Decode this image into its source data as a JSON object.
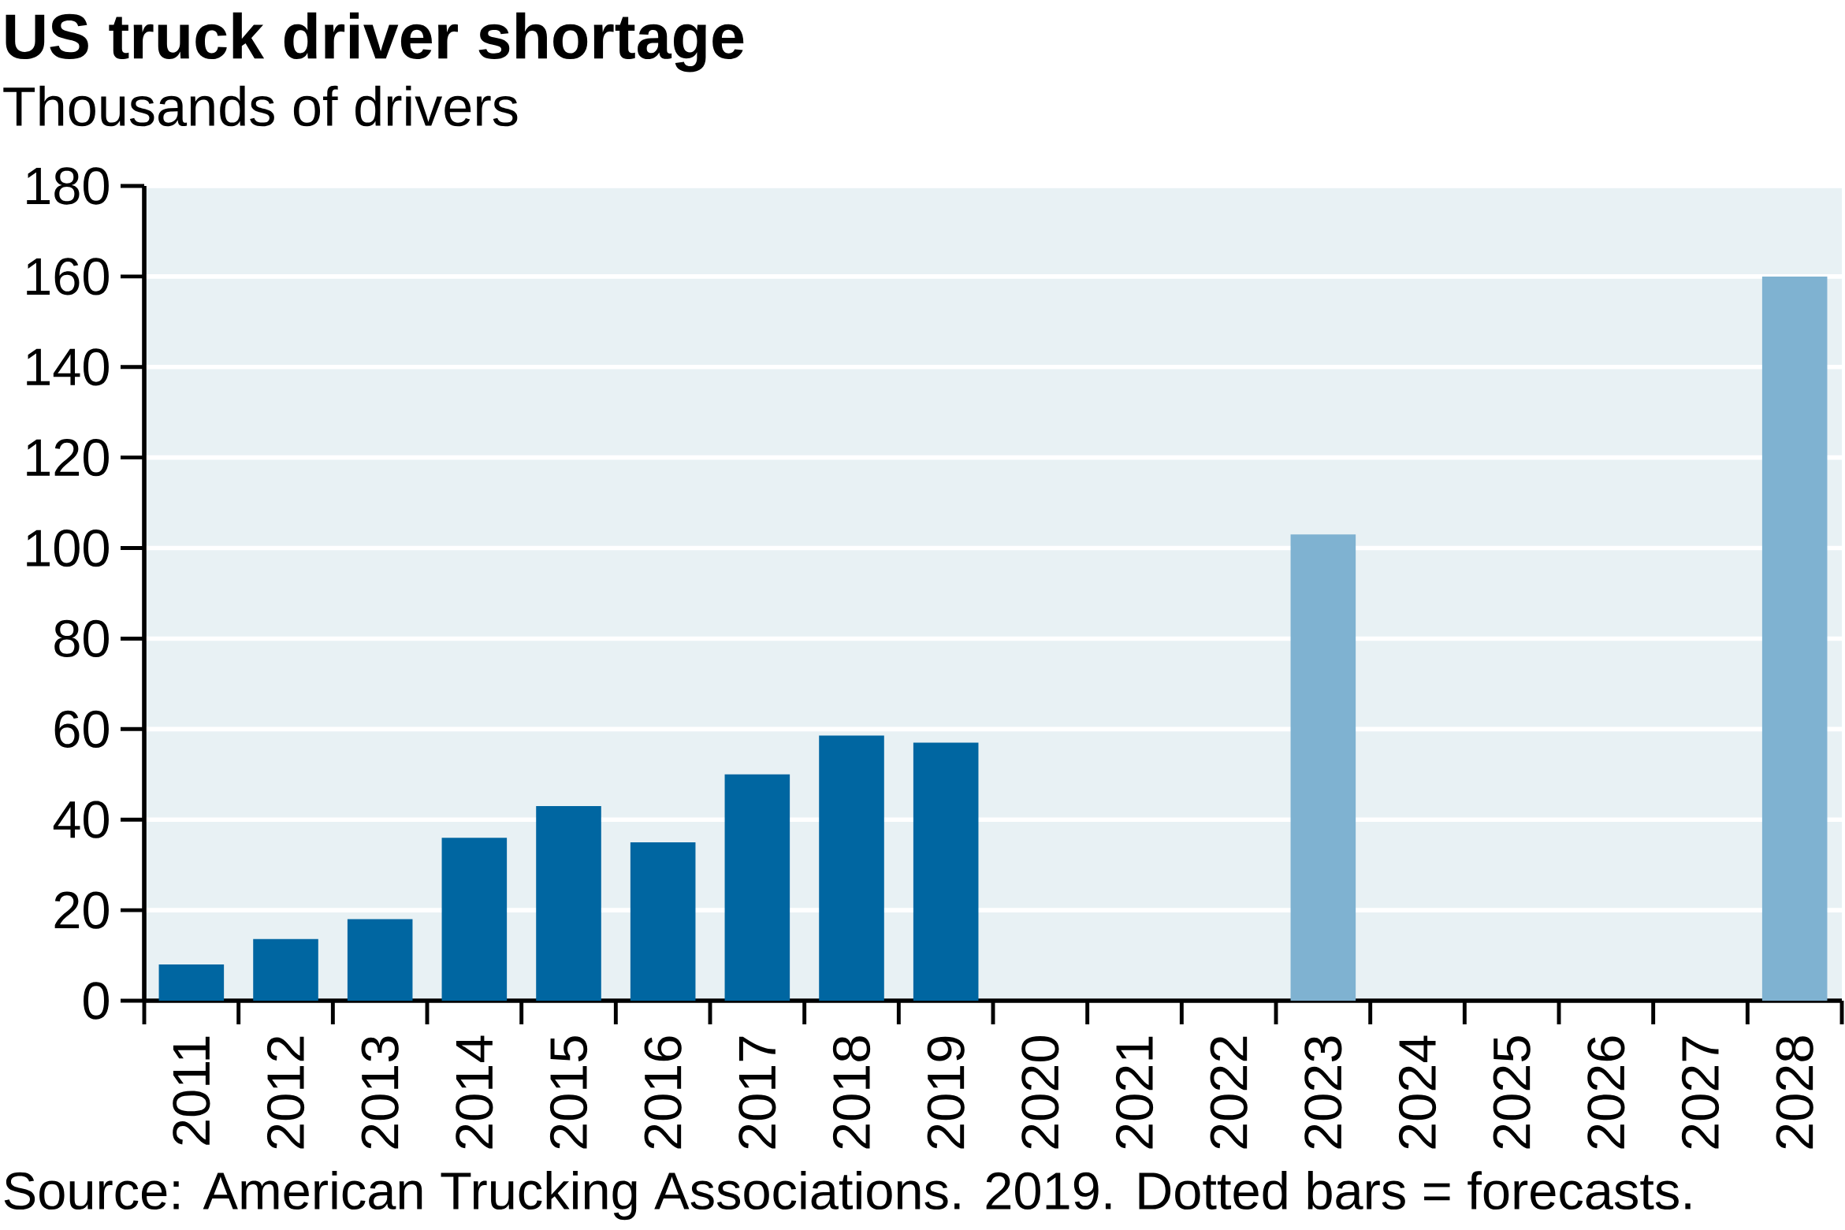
{
  "chart_data": {
    "type": "bar",
    "title": "US truck driver shortage",
    "subtitle": "Thousands of drivers",
    "categories": [
      "2011",
      "2012",
      "2013",
      "2014",
      "2015",
      "2016",
      "2017",
      "2018",
      "2019",
      "2020",
      "2021",
      "2022",
      "2023",
      "2024",
      "2025",
      "2026",
      "2027",
      "2028"
    ],
    "values": [
      8,
      13.6,
      18,
      36,
      43,
      35,
      50,
      58.6,
      57,
      null,
      null,
      null,
      103,
      null,
      null,
      null,
      null,
      160
    ],
    "colors": [
      "#0066a1",
      "#0066a1",
      "#0066a1",
      "#0066a1",
      "#0066a1",
      "#0066a1",
      "#0066a1",
      "#0066a1",
      "#0066a1",
      "#0066a1",
      "#0066a1",
      "#0066a1",
      "#7fb2d1",
      "#7fb2d1",
      "#7fb2d1",
      "#7fb2d1",
      "#7fb2d1",
      "#7fb2d1"
    ],
    "ylim": [
      0,
      180
    ],
    "yticks": [
      0,
      20,
      40,
      60,
      80,
      100,
      120,
      140,
      160,
      180
    ],
    "grid": "y",
    "annotations": [
      "Source: American Trucking Associations. 2019. Dotted bars = forecasts."
    ]
  }
}
